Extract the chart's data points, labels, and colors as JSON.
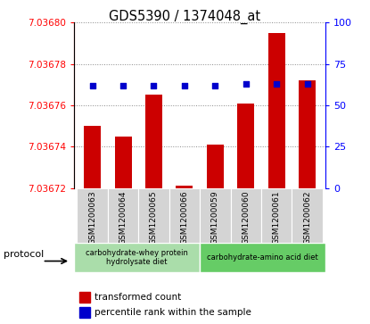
{
  "title": "GDS5390 / 1374048_at",
  "categories": [
    "GSM1200063",
    "GSM1200064",
    "GSM1200065",
    "GSM1200066",
    "GSM1200059",
    "GSM1200060",
    "GSM1200061",
    "GSM1200062"
  ],
  "transformed_count": [
    7.03675,
    7.036745,
    7.036765,
    7.036721,
    7.036741,
    7.036761,
    7.036795,
    7.036772
  ],
  "percentile_rank": [
    62,
    62,
    62,
    62,
    62,
    63,
    63,
    63
  ],
  "ylim_left": [
    7.03672,
    7.0368
  ],
  "ylim_right": [
    0,
    100
  ],
  "yticks_left": [
    7.03672,
    7.03674,
    7.03676,
    7.03678,
    7.0368
  ],
  "yticks_right": [
    0,
    25,
    50,
    75,
    100
  ],
  "bar_color": "#cc0000",
  "dot_color": "#0000cc",
  "bar_base": 7.03672,
  "protocol_groups": [
    {
      "label": "carbohydrate-whey protein\nhydrolysate diet",
      "start": 0,
      "end": 4,
      "color": "#aaddaa"
    },
    {
      "label": "carbohydrate-amino acid diet",
      "start": 4,
      "end": 8,
      "color": "#66cc66"
    }
  ],
  "legend_items": [
    {
      "color": "#cc0000",
      "label": "transformed count"
    },
    {
      "color": "#0000cc",
      "label": "percentile rank within the sample"
    }
  ],
  "protocol_label": "protocol",
  "plot_bg_color": "#ffffff",
  "grid_color": "#888888",
  "cell_bg_color": "#d4d4d4"
}
